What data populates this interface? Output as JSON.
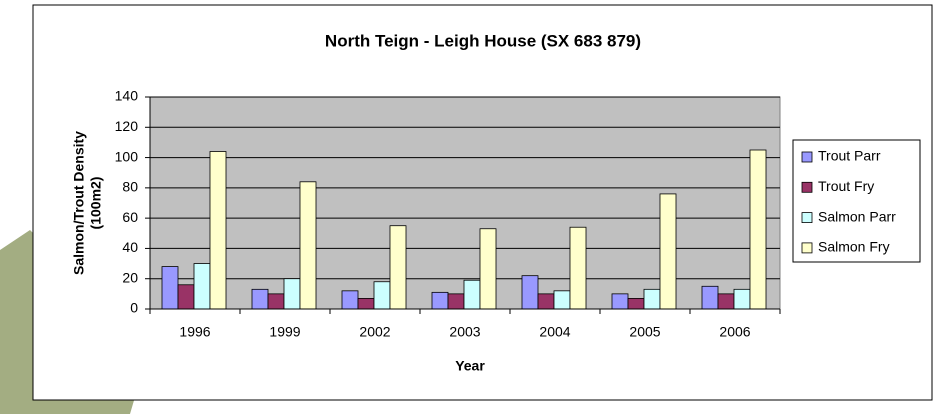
{
  "chart_data": {
    "type": "bar",
    "title": "North Teign - Leigh House (SX 683 879)",
    "x_label": "Year",
    "y_label": [
      "Salmon/Trout Density",
      "(100m2)"
    ],
    "categories": [
      "1996",
      "1999",
      "2002",
      "2003",
      "2004",
      "2005",
      "2006"
    ],
    "series": [
      {
        "name": "Trout Parr",
        "color": "#9999ff",
        "values": [
          28,
          13,
          12,
          11,
          22,
          10,
          15
        ]
      },
      {
        "name": "Trout Fry",
        "color": "#993366",
        "values": [
          16,
          10,
          7,
          10,
          10,
          7,
          10
        ]
      },
      {
        "name": "Salmon Parr",
        "color": "#ccffff",
        "values": [
          30,
          20,
          18,
          19,
          12,
          13,
          13
        ]
      },
      {
        "name": "Salmon Fry",
        "color": "#ffffcc",
        "values": [
          104,
          84,
          55,
          53,
          54,
          76,
          105
        ]
      }
    ],
    "ylim": [
      0,
      140
    ],
    "yticks": [
      0,
      20,
      40,
      60,
      80,
      100,
      120,
      140
    ],
    "grid": true,
    "plot_background": "#c0c0c0",
    "legend": "right"
  }
}
